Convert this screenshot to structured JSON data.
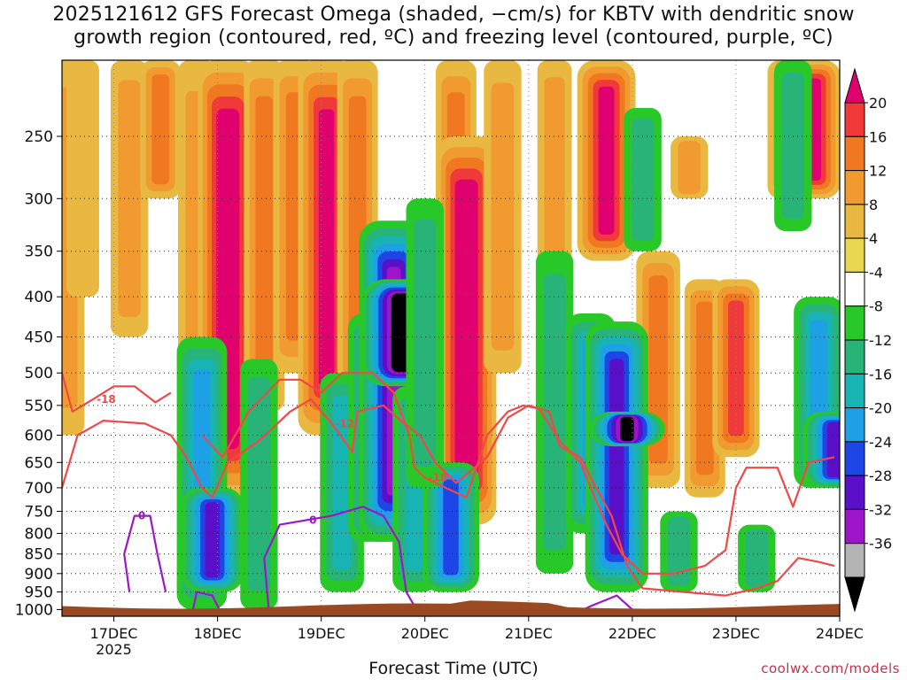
{
  "title_line1": "2025121612 GFS Forecast Omega (shaded, −cm/s) for KBTV with dendritic snow",
  "title_line2": "growth region (contoured, red, ºC) and freezing level (contoured, purple, ºC)",
  "xlabel": "Forecast Time (UTC)",
  "credit": "coolwx.com/models",
  "chart_data": {
    "type": "heatmap",
    "x_ticks": [
      {
        "label": "17DEC",
        "sub": "2025",
        "t": 0
      },
      {
        "label": "18DEC",
        "t": 1
      },
      {
        "label": "19DEC",
        "t": 2
      },
      {
        "label": "20DEC",
        "t": 3
      },
      {
        "label": "21DEC",
        "t": 4
      },
      {
        "label": "22DEC",
        "t": 5
      },
      {
        "label": "23DEC",
        "t": 6
      },
      {
        "label": "24DEC",
        "t": 7
      }
    ],
    "xlim": [
      -0.5,
      7.0
    ],
    "y_ticks": [
      250,
      300,
      350,
      400,
      450,
      500,
      550,
      600,
      650,
      700,
      750,
      800,
      850,
      900,
      950,
      1000
    ],
    "ylim": [
      200,
      1020
    ],
    "yscale": "log",
    "colorbar": {
      "labels": [
        20,
        16,
        12,
        8,
        4,
        -4,
        -8,
        -12,
        -16,
        -20,
        -24,
        -28,
        -32,
        -36
      ],
      "colors": [
        "#e0006e",
        "#f03a3a",
        "#f07820",
        "#f09a30",
        "#e8b840",
        "#e8d850",
        "#ffffff",
        "#28c828",
        "#28b478",
        "#18b4b4",
        "#1ea0e6",
        "#1e46e6",
        "#5a10c8",
        "#9e14c8",
        "#b4b4b4",
        "#000000"
      ]
    },
    "omega_columns": [
      {
        "t": -0.45,
        "p_top": 200,
        "p_bot": 600,
        "v": 6
      },
      {
        "t": -0.3,
        "p_top": 200,
        "p_bot": 400,
        "v": 5
      },
      {
        "t": 0.15,
        "p_top": 200,
        "p_bot": 450,
        "v": 8
      },
      {
        "t": 0.45,
        "p_top": 200,
        "p_bot": 300,
        "v": 10
      },
      {
        "t": 0.8,
        "p_top": 200,
        "p_bot": 700,
        "v": 8
      },
      {
        "t": 1.1,
        "p_top": 200,
        "p_bot": 720,
        "v": 22
      },
      {
        "t": 1.45,
        "p_top": 200,
        "p_bot": 560,
        "v": 10
      },
      {
        "t": 1.75,
        "p_top": 200,
        "p_bot": 500,
        "v": 12
      },
      {
        "t": 2.05,
        "p_top": 200,
        "p_bot": 600,
        "v": 20
      },
      {
        "t": 2.35,
        "p_top": 200,
        "p_bot": 560,
        "v": 10
      },
      {
        "t": 2.65,
        "p_top": 350,
        "p_bot": 650,
        "v": 8
      },
      {
        "t": 3.3,
        "p_top": 200,
        "p_bot": 500,
        "v": 10
      },
      {
        "t": 3.4,
        "p_top": 250,
        "p_bot": 780,
        "v": 22
      },
      {
        "t": 3.75,
        "p_top": 200,
        "p_bot": 500,
        "v": 8
      },
      {
        "t": 4.25,
        "p_top": 200,
        "p_bot": 400,
        "v": 6
      },
      {
        "t": 4.75,
        "p_top": 200,
        "p_bot": 360,
        "v": 21
      },
      {
        "t": 5.25,
        "p_top": 350,
        "p_bot": 700,
        "v": 12
      },
      {
        "t": 5.55,
        "p_top": 250,
        "p_bot": 300,
        "v": 8
      },
      {
        "t": 5.7,
        "p_top": 380,
        "p_bot": 720,
        "v": 10
      },
      {
        "t": 6.0,
        "p_top": 380,
        "p_bot": 640,
        "v": 14
      },
      {
        "t": 6.5,
        "p_top": 200,
        "p_bot": 300,
        "v": 10
      },
      {
        "t": 6.75,
        "p_top": 200,
        "p_bot": 300,
        "v": 18
      },
      {
        "t": 1.4,
        "p_top": 480,
        "p_bot": 1000,
        "v": -8
      },
      {
        "t": 0.85,
        "p_top": 450,
        "p_bot": 1000,
        "v": -16
      },
      {
        "t": 0.95,
        "p_top": 700,
        "p_bot": 950,
        "v": -24
      },
      {
        "t": 2.2,
        "p_top": 500,
        "p_bot": 950,
        "v": -12
      },
      {
        "t": 2.5,
        "p_top": 420,
        "p_bot": 820,
        "v": -16
      },
      {
        "t": 2.7,
        "p_top": 320,
        "p_bot": 820,
        "v": -28
      },
      {
        "t": 2.78,
        "p_top": 380,
        "p_bot": 520,
        "v": -36
      },
      {
        "t": 2.9,
        "p_top": 520,
        "p_bot": 950,
        "v": -12
      },
      {
        "t": 3.25,
        "p_top": 650,
        "p_bot": 950,
        "v": -20
      },
      {
        "t": 3.0,
        "p_top": 300,
        "p_bot": 700,
        "v": -8
      },
      {
        "t": 4.25,
        "p_top": 350,
        "p_bot": 900,
        "v": -8
      },
      {
        "t": 4.6,
        "p_top": 420,
        "p_bot": 800,
        "v": -16
      },
      {
        "t": 4.85,
        "p_top": 430,
        "p_bot": 950,
        "v": -24
      },
      {
        "t": 4.95,
        "p_top": 560,
        "p_bot": 620,
        "v": -32
      },
      {
        "t": 5.1,
        "p_top": 230,
        "p_bot": 350,
        "v": -8
      },
      {
        "t": 5.45,
        "p_top": 750,
        "p_bot": 950,
        "v": -8
      },
      {
        "t": 6.2,
        "p_top": 780,
        "p_bot": 950,
        "v": -8
      },
      {
        "t": 6.55,
        "p_top": 200,
        "p_bot": 330,
        "v": -8
      },
      {
        "t": 6.8,
        "p_top": 400,
        "p_bot": 700,
        "v": -16
      },
      {
        "t": 6.95,
        "p_top": 560,
        "p_bot": 700,
        "v": -24
      }
    ],
    "contours_red": [
      {
        "label": "-18",
        "pts": [
          [
            -0.5,
            500
          ],
          [
            -0.4,
            560
          ],
          [
            -0.2,
            540
          ],
          [
            0.0,
            520
          ],
          [
            0.2,
            520
          ],
          [
            0.4,
            545
          ],
          [
            0.55,
            530
          ]
        ]
      },
      {
        "label": "-12",
        "pts": [
          [
            -0.5,
            700
          ],
          [
            -0.35,
            600
          ],
          [
            -0.1,
            575
          ],
          [
            0.3,
            580
          ],
          [
            0.55,
            600
          ],
          [
            0.7,
            640
          ],
          [
            0.85,
            700
          ],
          [
            0.95,
            720
          ],
          [
            1.1,
            650
          ],
          [
            1.4,
            610
          ],
          [
            1.7,
            560
          ],
          [
            1.9,
            540
          ],
          [
            2.1,
            580
          ],
          [
            2.3,
            630
          ],
          [
            2.35,
            560
          ],
          [
            2.6,
            550
          ],
          [
            2.8,
            580
          ],
          [
            2.95,
            600
          ],
          [
            3.1,
            650
          ],
          [
            3.3,
            690
          ],
          [
            3.6,
            640
          ],
          [
            3.8,
            570
          ],
          [
            4.0,
            550
          ],
          [
            4.2,
            560
          ],
          [
            4.3,
            620
          ],
          [
            4.5,
            640
          ],
          [
            4.65,
            700
          ],
          [
            4.8,
            760
          ],
          [
            4.95,
            880
          ],
          [
            5.1,
            940
          ],
          [
            5.5,
            950
          ],
          [
            5.9,
            960
          ],
          [
            6.2,
            940
          ],
          [
            6.4,
            920
          ],
          [
            6.6,
            860
          ],
          [
            6.8,
            870
          ],
          [
            6.95,
            880
          ]
        ]
      },
      {
        "label": "-18",
        "pts": [
          [
            0.85,
            600
          ],
          [
            1.05,
            640
          ],
          [
            1.3,
            560
          ],
          [
            1.6,
            510
          ],
          [
            1.8,
            510
          ],
          [
            2.0,
            530
          ],
          [
            2.2,
            500
          ],
          [
            2.5,
            500
          ],
          [
            2.7,
            530
          ],
          [
            2.85,
            600
          ],
          [
            2.9,
            660
          ],
          [
            3.0,
            680
          ],
          [
            3.2,
            700
          ],
          [
            3.4,
            720
          ],
          [
            3.6,
            600
          ],
          [
            3.8,
            560
          ],
          [
            3.95,
            550
          ],
          [
            4.1,
            555
          ],
          [
            4.3,
            610
          ],
          [
            4.5,
            650
          ],
          [
            4.6,
            700
          ],
          [
            4.75,
            780
          ],
          [
            4.9,
            850
          ],
          [
            5.1,
            900
          ],
          [
            5.4,
            900
          ],
          [
            5.7,
            880
          ],
          [
            5.9,
            840
          ],
          [
            6.0,
            700
          ],
          [
            6.1,
            660
          ],
          [
            6.4,
            660
          ],
          [
            6.55,
            740
          ],
          [
            6.7,
            650
          ],
          [
            6.95,
            640
          ]
        ]
      }
    ],
    "contours_purple": [
      {
        "label": "0",
        "pts": [
          [
            0.15,
            950
          ],
          [
            0.1,
            850
          ],
          [
            0.2,
            760
          ],
          [
            0.35,
            760
          ],
          [
            0.42,
            850
          ],
          [
            0.5,
            950
          ]
        ]
      },
      {
        "label": "",
        "pts": [
          [
            0.75,
            1020
          ],
          [
            0.8,
            950
          ],
          [
            0.95,
            960
          ],
          [
            1.05,
            1020
          ]
        ]
      },
      {
        "label": "0",
        "pts": [
          [
            1.5,
            1020
          ],
          [
            1.45,
            860
          ],
          [
            1.6,
            780
          ],
          [
            1.85,
            770
          ],
          [
            2.1,
            760
          ],
          [
            2.4,
            740
          ],
          [
            2.6,
            760
          ],
          [
            2.75,
            820
          ],
          [
            2.82,
            950
          ],
          [
            2.9,
            990
          ],
          [
            3.05,
            1020
          ]
        ]
      },
      {
        "label": "",
        "pts": [
          [
            4.4,
            1020
          ],
          [
            4.6,
            990
          ],
          [
            4.85,
            960
          ],
          [
            5.0,
            1000
          ],
          [
            5.2,
            1020
          ]
        ]
      }
    ],
    "terrain_p": 990
  }
}
